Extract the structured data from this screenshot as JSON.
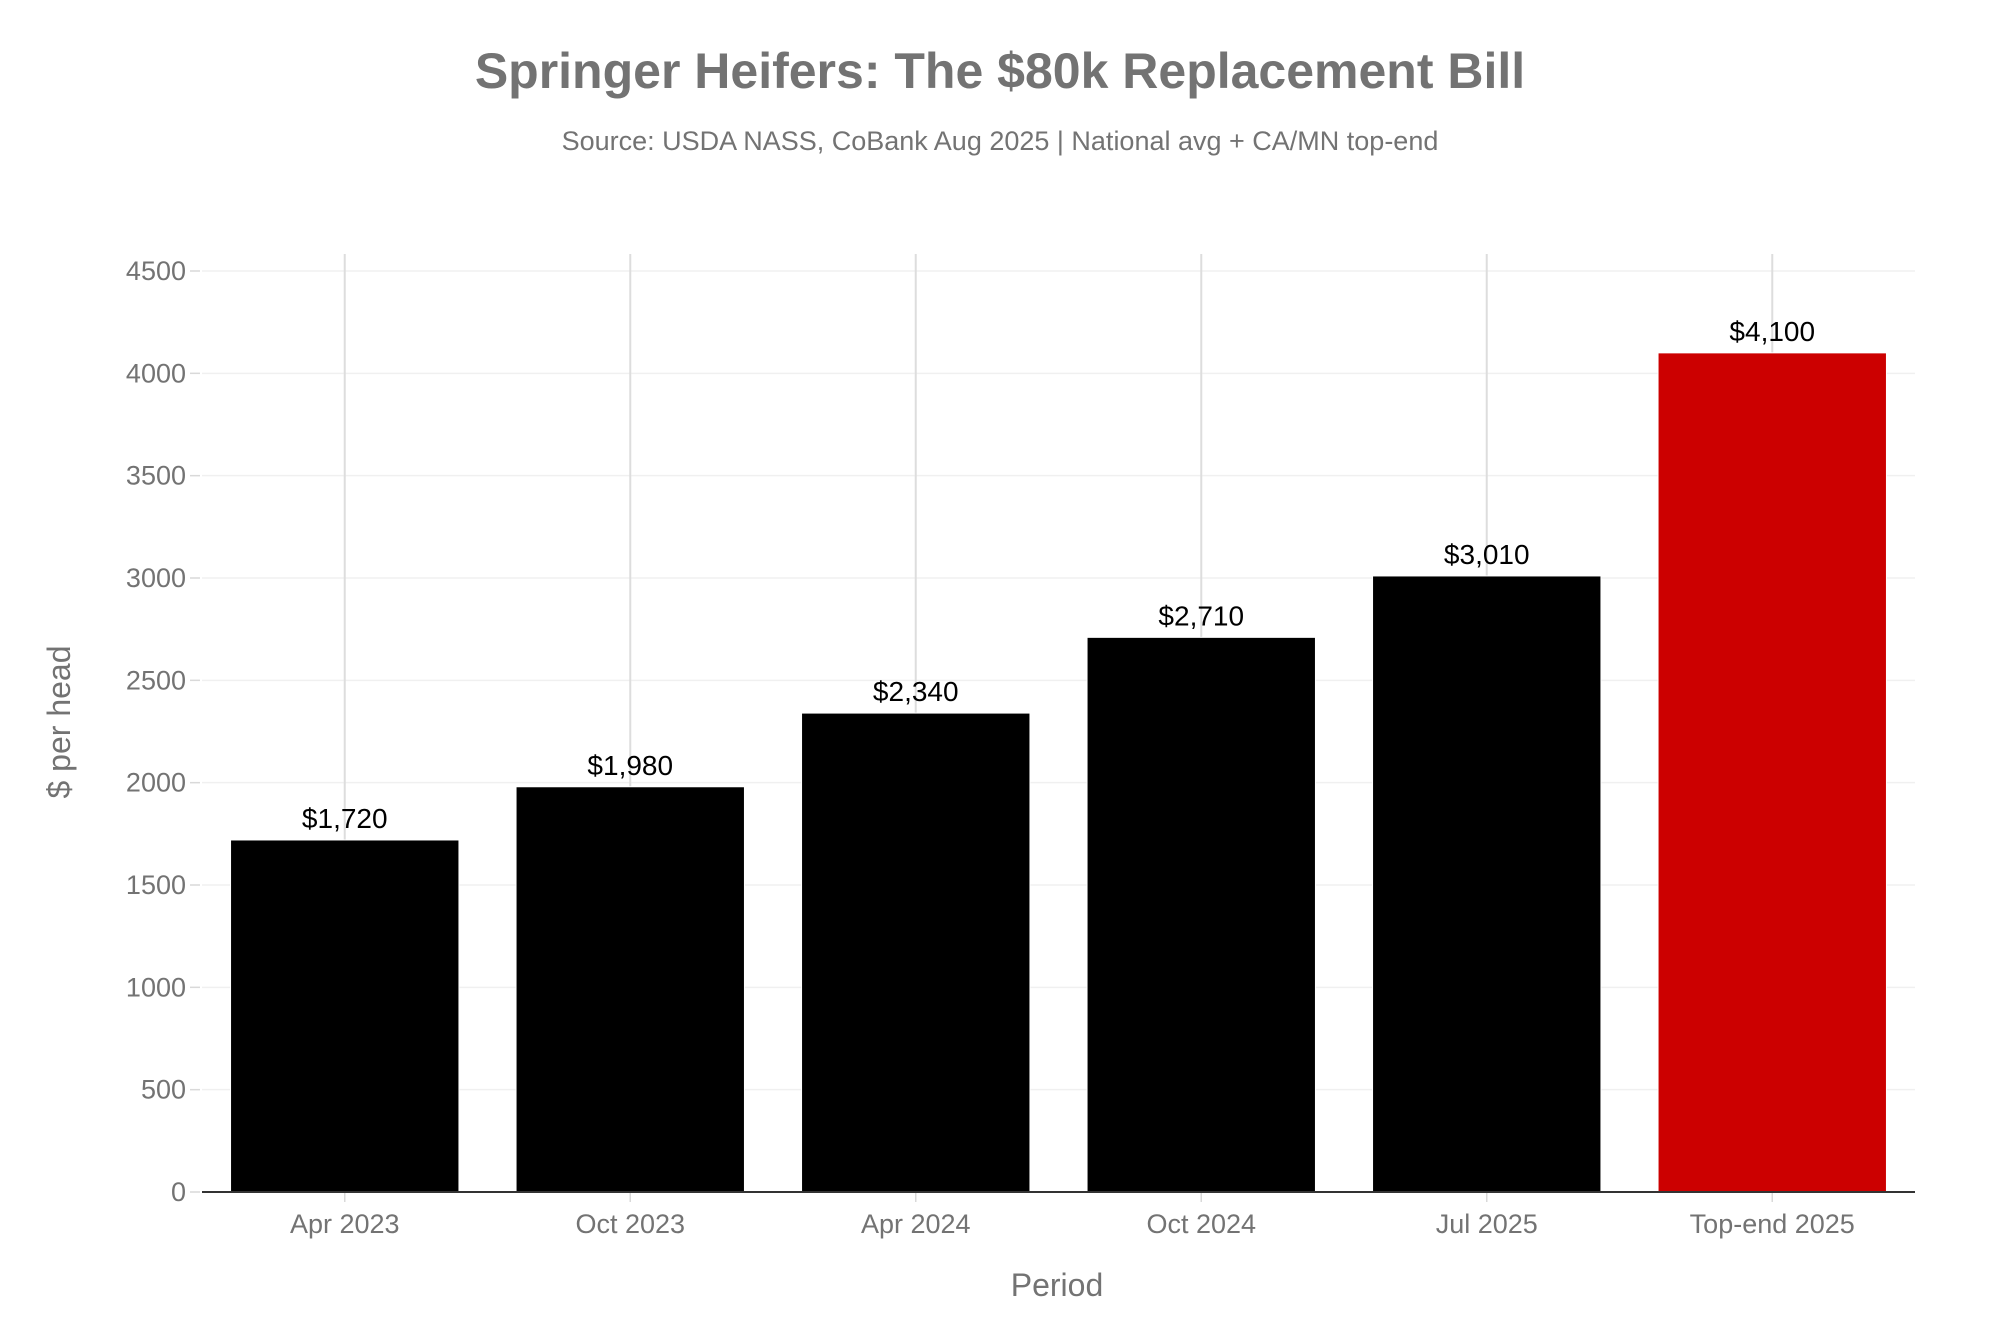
{
  "chart_data": {
    "type": "bar",
    "title": "Springer Heifers: The $80k Replacement Bill",
    "subtitle": "Source: USDA NASS, CoBank Aug 2025 | National avg + CA/MN top-end",
    "xlabel": "Period",
    "ylabel": "$ per head",
    "categories": [
      "Apr 2023",
      "Oct 2023",
      "Apr 2024",
      "Oct 2024",
      "Jul 2025",
      "Top-end 2025"
    ],
    "values": [
      1720,
      1980,
      2340,
      2710,
      3010,
      4100
    ],
    "value_labels": [
      "$1,720",
      "$1,980",
      "$2,340",
      "$2,710",
      "$3,010",
      "$4,100"
    ],
    "bar_colors": [
      "#000000",
      "#000000",
      "#000000",
      "#000000",
      "#000000",
      "#cc0000"
    ],
    "ylim": [
      0,
      4500
    ],
    "yticks": [
      "0",
      "500",
      "1000",
      "1500",
      "2000",
      "2500",
      "3000",
      "3500",
      "4000",
      "4500"
    ],
    "grid": true,
    "legend": "none"
  }
}
